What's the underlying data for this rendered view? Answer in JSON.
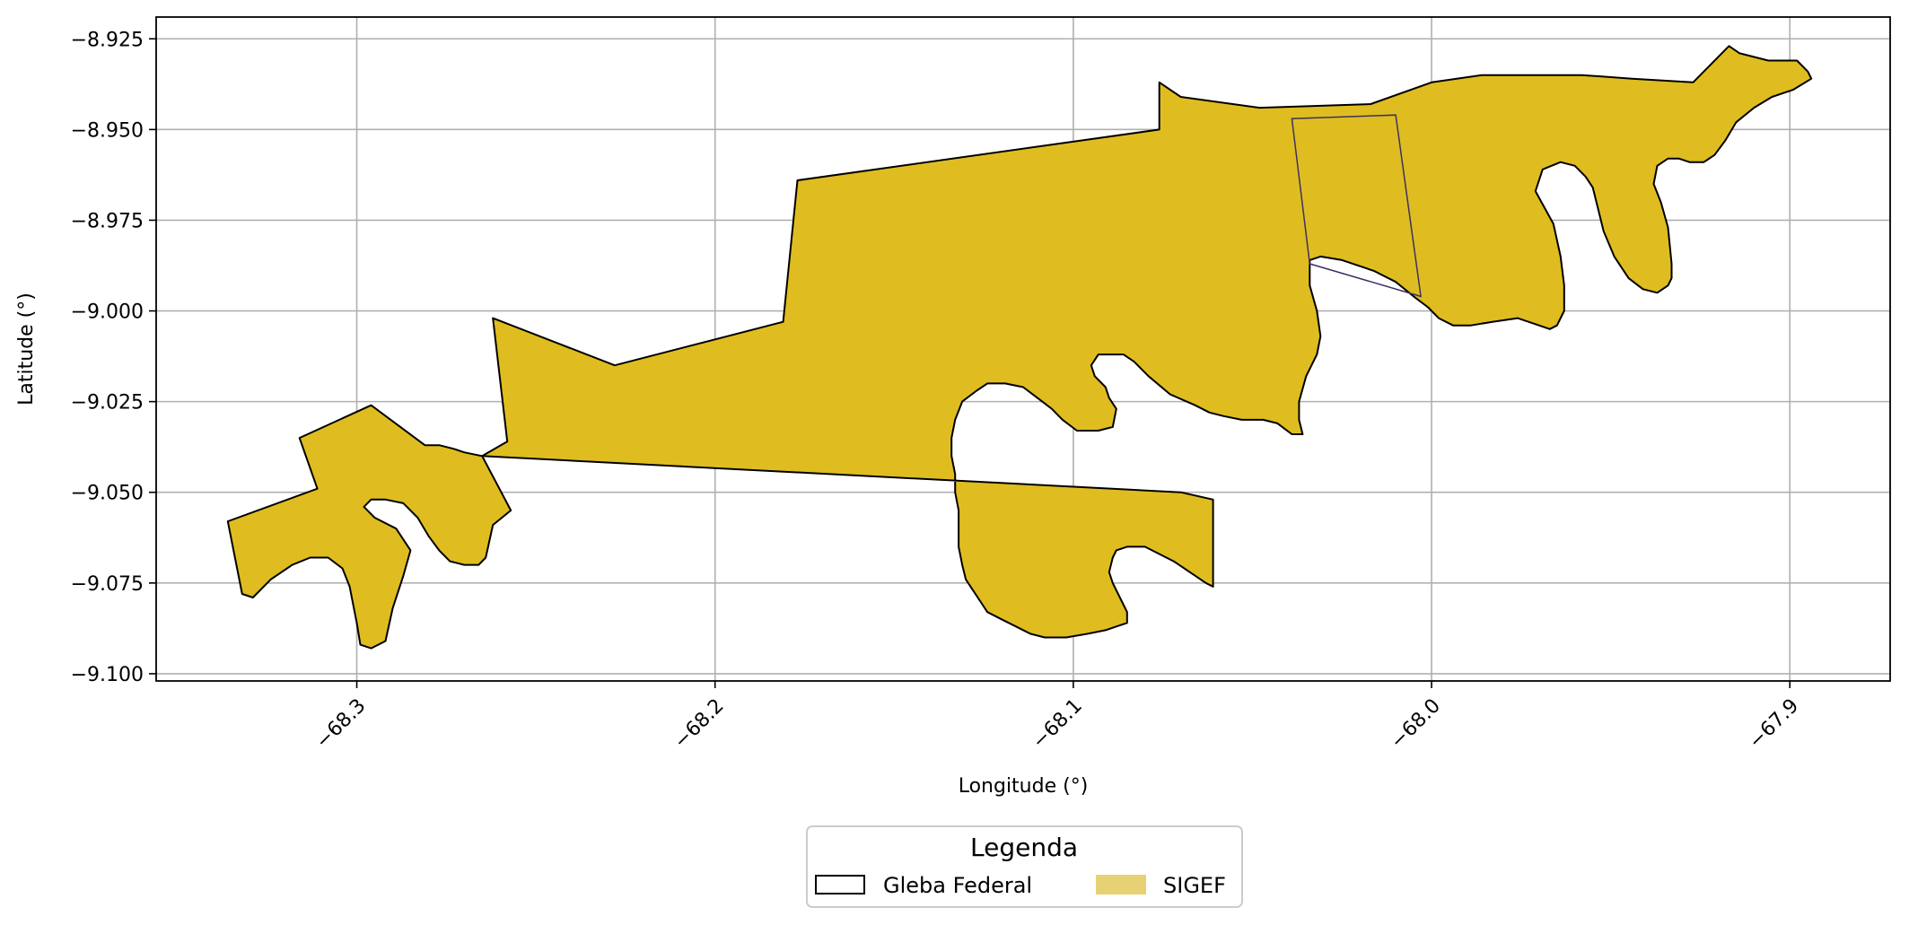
{
  "chart_data": {
    "type": "map",
    "xlabel": "Longitude (°)",
    "ylabel": "Latitude (°)",
    "xlim": [
      -68.356,
      -67.872
    ],
    "ylim": [
      -9.102,
      -8.919
    ],
    "xticks": [
      {
        "value": -68.3,
        "label": "−68.3"
      },
      {
        "value": -68.2,
        "label": "−68.2"
      },
      {
        "value": -68.1,
        "label": "−68.1"
      },
      {
        "value": -68.0,
        "label": "−68.0"
      },
      {
        "value": -67.9,
        "label": "−67.9"
      }
    ],
    "yticks": [
      {
        "value": -8.925,
        "label": "−8.925"
      },
      {
        "value": -8.95,
        "label": "−8.950"
      },
      {
        "value": -8.975,
        "label": "−8.975"
      },
      {
        "value": -9.0,
        "label": "−9.000"
      },
      {
        "value": -9.025,
        "label": "−9.025"
      },
      {
        "value": -9.05,
        "label": "−9.050"
      },
      {
        "value": -9.075,
        "label": "−9.075"
      },
      {
        "value": -9.1,
        "label": "−9.100"
      }
    ],
    "grid": true,
    "legend": {
      "title": "Legenda",
      "placement": "bottom-center",
      "entries": [
        {
          "label": "Gleba Federal",
          "fill": "#ffffff",
          "edge": "#000000"
        },
        {
          "label": "SIGEF",
          "fill": "#e6d274",
          "edge": "#e6d274"
        }
      ]
    },
    "layers": [
      {
        "name": "SIGEF",
        "fill": "#dfbd20",
        "edge": "#000000",
        "polygon": [
          [
            -68.336,
            -9.058
          ],
          [
            -68.332,
            -9.078
          ],
          [
            -68.329,
            -9.079
          ],
          [
            -68.324,
            -9.074
          ],
          [
            -68.318,
            -9.07
          ],
          [
            -68.313,
            -9.068
          ],
          [
            -68.308,
            -9.068
          ],
          [
            -68.304,
            -9.071
          ],
          [
            -68.302,
            -9.076
          ],
          [
            -68.3,
            -9.086
          ],
          [
            -68.299,
            -9.092
          ],
          [
            -68.296,
            -9.093
          ],
          [
            -68.292,
            -9.091
          ],
          [
            -68.29,
            -9.082
          ],
          [
            -68.287,
            -9.073
          ],
          [
            -68.285,
            -9.066
          ],
          [
            -68.289,
            -9.06
          ],
          [
            -68.295,
            -9.057
          ],
          [
            -68.298,
            -9.054
          ],
          [
            -68.296,
            -9.052
          ],
          [
            -68.292,
            -9.052
          ],
          [
            -68.287,
            -9.053
          ],
          [
            -68.283,
            -9.057
          ],
          [
            -68.28,
            -9.062
          ],
          [
            -68.277,
            -9.066
          ],
          [
            -68.274,
            -9.069
          ],
          [
            -68.27,
            -9.07
          ],
          [
            -68.266,
            -9.07
          ],
          [
            -68.264,
            -9.068
          ],
          [
            -68.262,
            -9.059
          ],
          [
            -68.257,
            -9.055
          ],
          [
            -68.265,
            -9.04
          ],
          [
            -68.27,
            -9.039
          ],
          [
            -68.273,
            -9.038
          ],
          [
            -68.277,
            -9.037
          ],
          [
            -68.281,
            -9.037
          ],
          [
            -68.296,
            -9.026
          ],
          [
            -68.316,
            -9.035
          ],
          [
            -68.311,
            -9.049
          ]
        ]
      },
      {
        "name": "SIGEF",
        "fill": "#dfbd20",
        "edge": "#000000",
        "polygon": [
          [
            -68.265,
            -9.04
          ],
          [
            -68.258,
            -9.036
          ],
          [
            -68.262,
            -9.002
          ],
          [
            -68.228,
            -9.015
          ],
          [
            -68.181,
            -9.003
          ],
          [
            -68.177,
            -8.964
          ],
          [
            -68.076,
            -8.95
          ],
          [
            -68.076,
            -8.937
          ],
          [
            -68.07,
            -8.941
          ],
          [
            -68.048,
            -8.944
          ],
          [
            -68.017,
            -8.943
          ],
          [
            -68.0,
            -8.937
          ],
          [
            -67.986,
            -8.935
          ],
          [
            -67.958,
            -8.935
          ],
          [
            -67.944,
            -8.936
          ],
          [
            -67.927,
            -8.937
          ],
          [
            -67.917,
            -8.927
          ],
          [
            -67.914,
            -8.929
          ],
          [
            -67.906,
            -8.931
          ],
          [
            -67.898,
            -8.931
          ],
          [
            -67.895,
            -8.934
          ],
          [
            -67.894,
            -8.936
          ],
          [
            -67.899,
            -8.939
          ],
          [
            -67.905,
            -8.941
          ],
          [
            -67.91,
            -8.944
          ],
          [
            -67.915,
            -8.948
          ],
          [
            -67.918,
            -8.953
          ],
          [
            -67.921,
            -8.957
          ],
          [
            -67.924,
            -8.959
          ],
          [
            -67.928,
            -8.959
          ],
          [
            -67.931,
            -8.958
          ],
          [
            -67.934,
            -8.958
          ],
          [
            -67.937,
            -8.96
          ],
          [
            -67.938,
            -8.965
          ],
          [
            -67.936,
            -8.97
          ],
          [
            -67.934,
            -8.977
          ],
          [
            -67.933,
            -8.987
          ],
          [
            -67.933,
            -8.991
          ],
          [
            -67.934,
            -8.993
          ],
          [
            -67.937,
            -8.995
          ],
          [
            -67.941,
            -8.994
          ],
          [
            -67.945,
            -8.991
          ],
          [
            -67.949,
            -8.985
          ],
          [
            -67.952,
            -8.978
          ],
          [
            -67.954,
            -8.97
          ],
          [
            -67.955,
            -8.966
          ],
          [
            -67.957,
            -8.963
          ],
          [
            -67.96,
            -8.96
          ],
          [
            -67.964,
            -8.959
          ],
          [
            -67.969,
            -8.961
          ],
          [
            -67.971,
            -8.967
          ],
          [
            -67.966,
            -8.976
          ],
          [
            -67.964,
            -8.985
          ],
          [
            -67.963,
            -8.993
          ],
          [
            -67.963,
            -9.0
          ],
          [
            -67.965,
            -9.004
          ],
          [
            -67.967,
            -9.005
          ],
          [
            -67.97,
            -9.004
          ],
          [
            -67.976,
            -9.002
          ],
          [
            -67.983,
            -9.003
          ],
          [
            -67.989,
            -9.004
          ],
          [
            -67.994,
            -9.004
          ],
          [
            -67.998,
            -9.002
          ],
          [
            -68.001,
            -8.999
          ],
          [
            -68.005,
            -8.996
          ],
          [
            -68.01,
            -8.992
          ],
          [
            -68.016,
            -8.989
          ],
          [
            -68.025,
            -8.986
          ],
          [
            -68.031,
            -8.985
          ],
          [
            -68.034,
            -8.986
          ],
          [
            -68.034,
            -8.99
          ],
          [
            -68.034,
            -8.993
          ],
          [
            -68.032,
            -9.0
          ],
          [
            -68.031,
            -9.007
          ],
          [
            -68.032,
            -9.012
          ],
          [
            -68.035,
            -9.018
          ],
          [
            -68.037,
            -9.025
          ],
          [
            -68.037,
            -9.03
          ],
          [
            -68.036,
            -9.034
          ],
          [
            -68.039,
            -9.034
          ],
          [
            -68.043,
            -9.031
          ],
          [
            -68.047,
            -9.03
          ],
          [
            -68.053,
            -9.03
          ],
          [
            -68.058,
            -9.029
          ],
          [
            -68.062,
            -9.028
          ],
          [
            -68.066,
            -9.026
          ],
          [
            -68.073,
            -9.023
          ],
          [
            -68.079,
            -9.018
          ],
          [
            -68.083,
            -9.014
          ],
          [
            -68.086,
            -9.012
          ],
          [
            -68.089,
            -9.012
          ],
          [
            -68.093,
            -9.012
          ],
          [
            -68.095,
            -9.015
          ],
          [
            -68.094,
            -9.018
          ],
          [
            -68.091,
            -9.021
          ],
          [
            -68.09,
            -9.024
          ],
          [
            -68.088,
            -9.027
          ],
          [
            -68.089,
            -9.032
          ],
          [
            -68.093,
            -9.033
          ],
          [
            -68.099,
            -9.033
          ],
          [
            -68.103,
            -9.03
          ],
          [
            -68.106,
            -9.027
          ],
          [
            -68.11,
            -9.024
          ],
          [
            -68.114,
            -9.021
          ],
          [
            -68.119,
            -9.02
          ],
          [
            -68.124,
            -9.02
          ],
          [
            -68.127,
            -9.022
          ],
          [
            -68.131,
            -9.025
          ],
          [
            -68.133,
            -9.03
          ],
          [
            -68.134,
            -9.035
          ],
          [
            -68.134,
            -9.04
          ],
          [
            -68.133,
            -9.045
          ],
          [
            -68.133,
            -9.05
          ],
          [
            -68.132,
            -9.055
          ],
          [
            -68.132,
            -9.06
          ],
          [
            -68.132,
            -9.065
          ],
          [
            -68.131,
            -9.07
          ],
          [
            -68.13,
            -9.074
          ],
          [
            -68.128,
            -9.077
          ],
          [
            -68.126,
            -9.08
          ],
          [
            -68.124,
            -9.083
          ],
          [
            -68.12,
            -9.085
          ],
          [
            -68.116,
            -9.087
          ],
          [
            -68.112,
            -9.089
          ],
          [
            -68.108,
            -9.09
          ],
          [
            -68.102,
            -9.09
          ],
          [
            -68.096,
            -9.089
          ],
          [
            -68.091,
            -9.088
          ],
          [
            -68.088,
            -9.087
          ],
          [
            -68.085,
            -9.086
          ],
          [
            -68.085,
            -9.083
          ],
          [
            -68.087,
            -9.079
          ],
          [
            -68.089,
            -9.075
          ],
          [
            -68.09,
            -9.072
          ],
          [
            -68.089,
            -9.068
          ],
          [
            -68.088,
            -9.066
          ],
          [
            -68.085,
            -9.065
          ],
          [
            -68.08,
            -9.065
          ],
          [
            -68.076,
            -9.067
          ],
          [
            -68.072,
            -9.069
          ],
          [
            -68.069,
            -9.071
          ],
          [
            -68.066,
            -9.073
          ],
          [
            -68.063,
            -9.075
          ],
          [
            -68.061,
            -9.076
          ],
          [
            -68.061,
            -9.052
          ],
          [
            -68.07,
            -9.05
          ]
        ]
      }
    ],
    "outlines": [
      {
        "name": "Gleba Federal",
        "stroke": "#3d3060",
        "polygon": [
          [
            -68.039,
            -8.947
          ],
          [
            -68.01,
            -8.946
          ],
          [
            -68.003,
            -8.996
          ],
          [
            -68.034,
            -8.987
          ]
        ]
      }
    ]
  }
}
